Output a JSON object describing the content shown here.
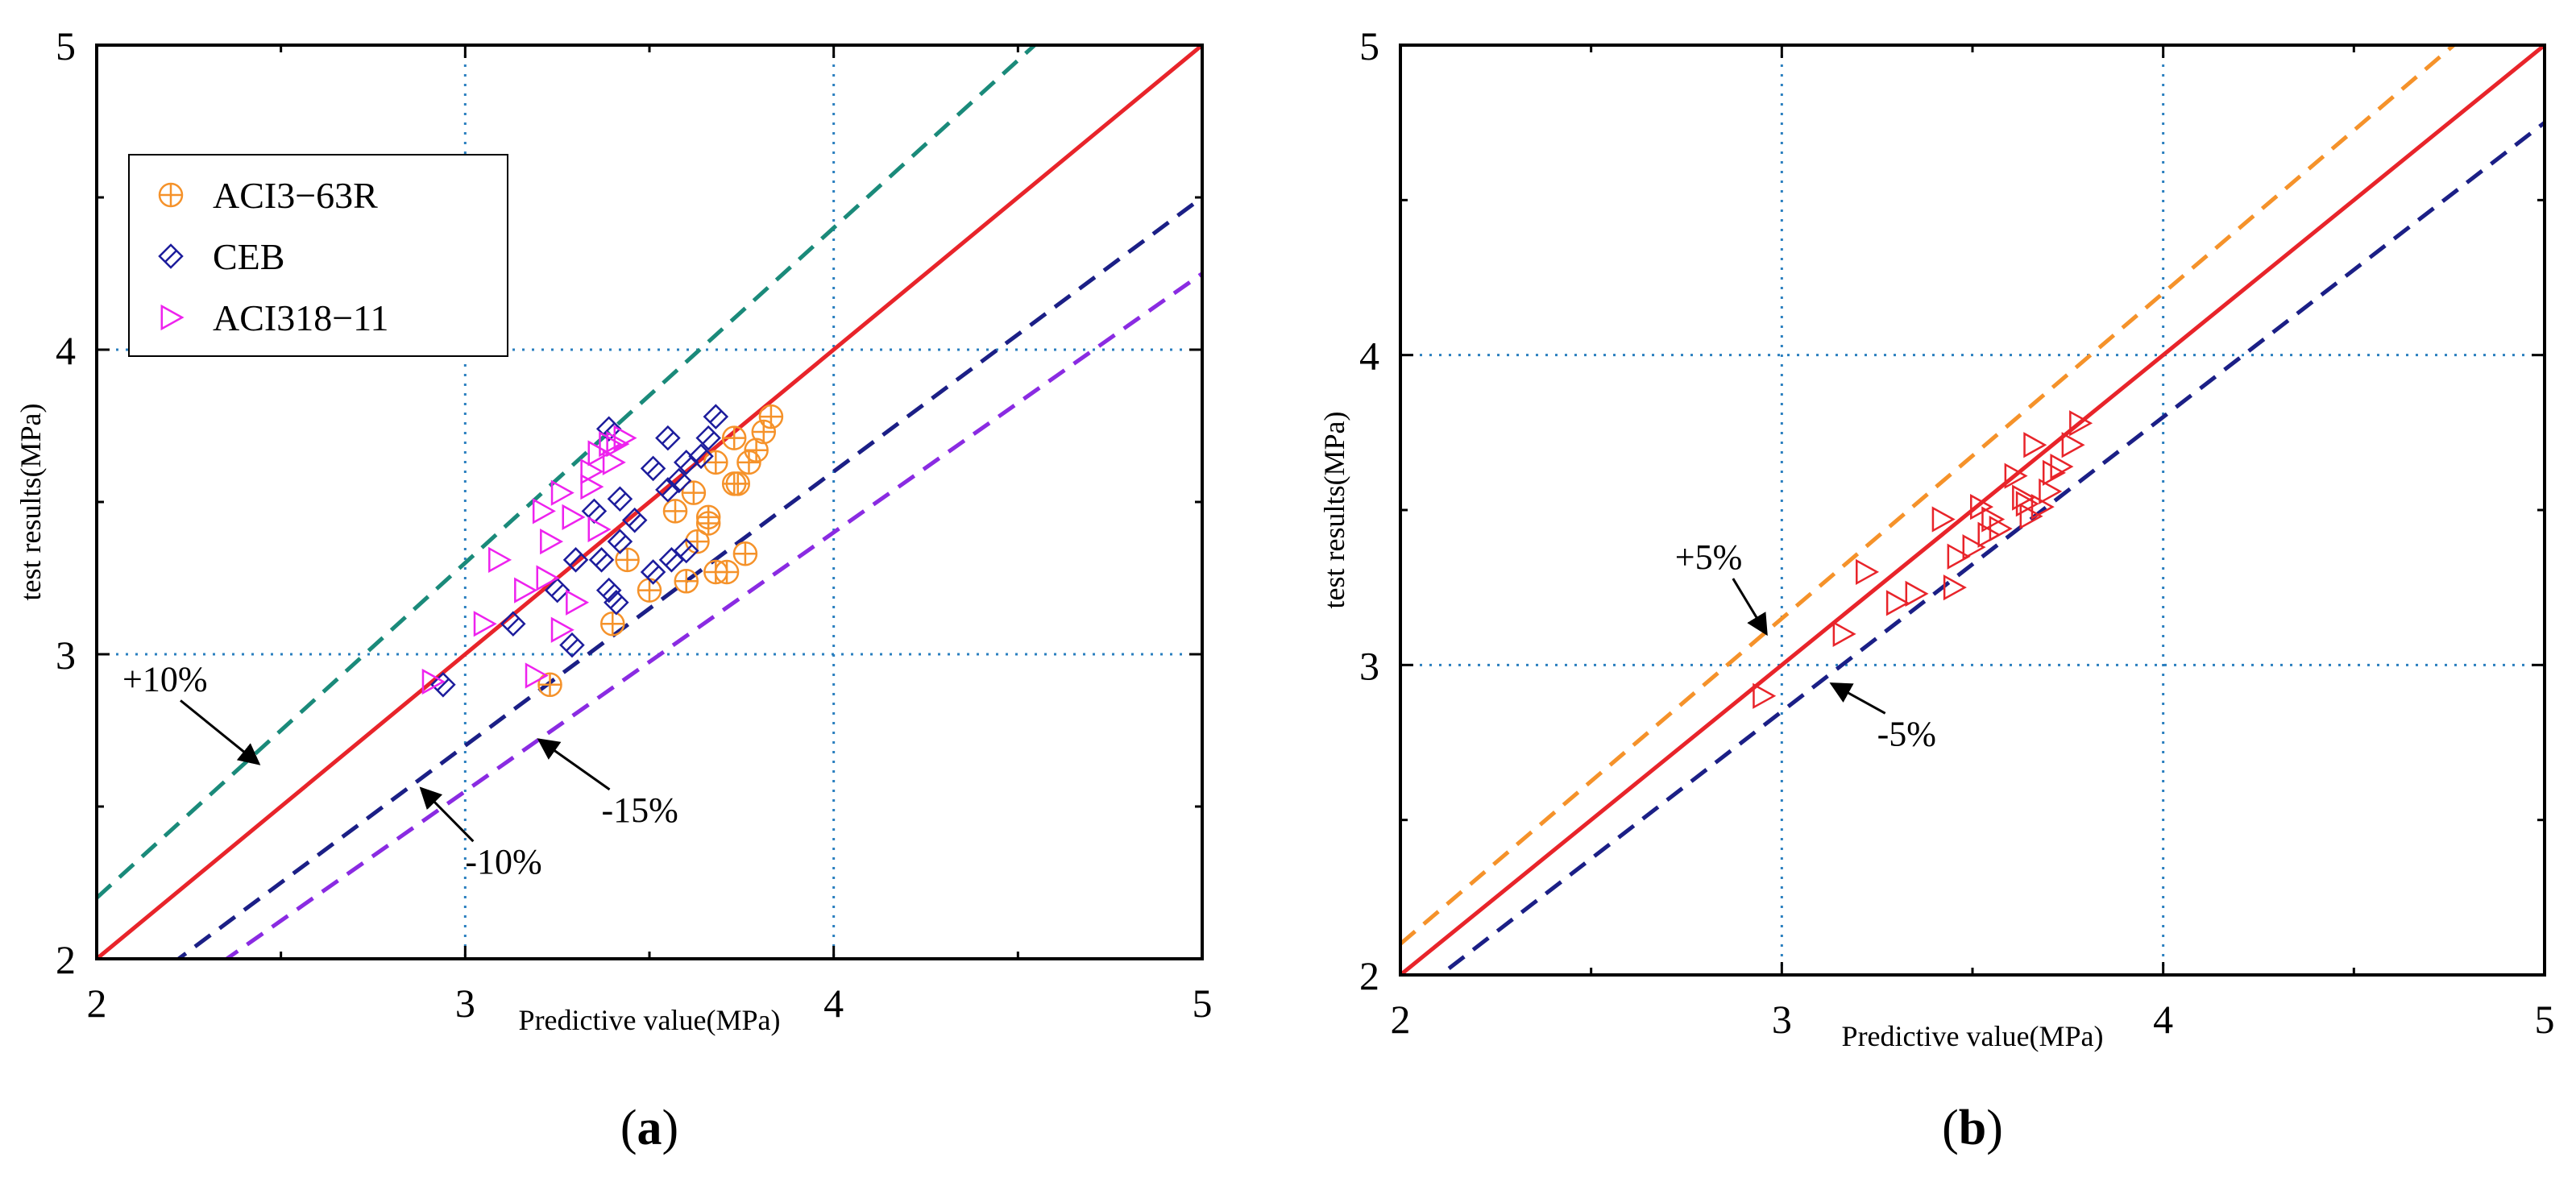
{
  "chart_data": [
    {
      "type": "scatter",
      "title": "",
      "caption_prefix": "(",
      "caption_letter": "a",
      "caption_suffix": ")",
      "xlabel": "Predictive value(MPa)",
      "ylabel": "test results(MPa)",
      "xlim": [
        2,
        5
      ],
      "ylim": [
        2,
        5
      ],
      "xticks": [
        "2",
        "3",
        "4",
        "5"
      ],
      "yticks": [
        "2",
        "3",
        "4",
        "5"
      ],
      "grid": true,
      "legend_position": "top-left",
      "series": [
        {
          "name": "ACI3−63R",
          "marker": "circle-plus",
          "color": "#f5922a",
          "points": [
            [
              3.23,
              2.9
            ],
            [
              3.4,
              3.1
            ],
            [
              3.44,
              3.31
            ],
            [
              3.5,
              3.21
            ],
            [
              3.6,
              3.24
            ],
            [
              3.63,
              3.37
            ],
            [
              3.57,
              3.47
            ],
            [
              3.62,
              3.53
            ],
            [
              3.66,
              3.45
            ],
            [
              3.68,
              3.27
            ],
            [
              3.71,
              3.27
            ],
            [
              3.76,
              3.33
            ],
            [
              3.68,
              3.63
            ],
            [
              3.73,
              3.56
            ],
            [
              3.74,
              3.56
            ],
            [
              3.73,
              3.71
            ],
            [
              3.77,
              3.63
            ],
            [
              3.79,
              3.67
            ],
            [
              3.81,
              3.73
            ],
            [
              3.83,
              3.78
            ],
            [
              3.66,
              3.43
            ]
          ]
        },
        {
          "name": "CEB",
          "marker": "diamond-slash",
          "color": "#1c1c9c",
          "points": [
            [
              2.94,
              2.9
            ],
            [
              3.13,
              3.1
            ],
            [
              3.29,
              3.03
            ],
            [
              3.39,
              3.21
            ],
            [
              3.41,
              3.17
            ],
            [
              3.25,
              3.21
            ],
            [
              3.3,
              3.31
            ],
            [
              3.37,
              3.31
            ],
            [
              3.42,
              3.37
            ],
            [
              3.46,
              3.44
            ],
            [
              3.42,
              3.51
            ],
            [
              3.51,
              3.27
            ],
            [
              3.56,
              3.31
            ],
            [
              3.6,
              3.34
            ],
            [
              3.55,
              3.54
            ],
            [
              3.51,
              3.61
            ],
            [
              3.58,
              3.57
            ],
            [
              3.6,
              3.63
            ],
            [
              3.64,
              3.65
            ],
            [
              3.66,
              3.71
            ],
            [
              3.68,
              3.78
            ],
            [
              3.55,
              3.71
            ],
            [
              3.35,
              3.47
            ],
            [
              3.39,
              3.74
            ]
          ]
        },
        {
          "name": "ACI318−11",
          "marker": "triangle-right",
          "color": "#ee22ee",
          "points": [
            [
              2.91,
              2.91
            ],
            [
              3.05,
              3.1
            ],
            [
              3.09,
              3.31
            ],
            [
              3.16,
              3.21
            ],
            [
              3.19,
              2.93
            ],
            [
              3.22,
              3.25
            ],
            [
              3.26,
              3.08
            ],
            [
              3.3,
              3.17
            ],
            [
              3.23,
              3.37
            ],
            [
              3.29,
              3.45
            ],
            [
              3.21,
              3.47
            ],
            [
              3.26,
              3.53
            ],
            [
              3.34,
              3.55
            ],
            [
              3.36,
              3.66
            ],
            [
              3.4,
              3.63
            ],
            [
              3.43,
              3.71
            ],
            [
              3.39,
              3.69
            ],
            [
              3.34,
              3.6
            ],
            [
              3.36,
              3.41
            ],
            [
              3.41,
              3.69
            ]
          ]
        }
      ],
      "reference_lines": [
        {
          "name": "y = x",
          "slope": 1.0,
          "color": "#e8242a",
          "dashed": false
        },
        {
          "name": "+10%",
          "slope": 1.1,
          "color": "#1a8a7a",
          "dashed": true
        },
        {
          "name": "-10%",
          "slope": 0.9,
          "color": "#1b1f86",
          "dashed": true
        },
        {
          "name": "-15%",
          "slope": 0.85,
          "color": "#8a2be2",
          "dashed": true
        }
      ],
      "annotations": [
        {
          "text": "+10%",
          "tx": 2.07,
          "ty": 2.88,
          "ax": 2.44,
          "ay": 2.64
        },
        {
          "text": "-10%",
          "tx": 3.0,
          "ty": 2.28,
          "ax": 2.88,
          "ay": 2.56
        },
        {
          "text": "-15%",
          "tx": 3.37,
          "ty": 2.45,
          "ax": 3.2,
          "ay": 2.72
        }
      ]
    },
    {
      "type": "scatter",
      "title": "",
      "caption_prefix": "(",
      "caption_letter": "b",
      "caption_suffix": ")",
      "xlabel": "Predictive value(MPa)",
      "ylabel": "test results(MPa)",
      "xlim": [
        2,
        5
      ],
      "ylim": [
        2,
        5
      ],
      "xticks": [
        "2",
        "3",
        "4",
        "5"
      ],
      "yticks": [
        "2",
        "3",
        "4",
        "5"
      ],
      "grid": true,
      "series": [
        {
          "name": "",
          "marker": "triangle-right",
          "color": "#e8242a",
          "points": [
            [
              2.95,
              2.9
            ],
            [
              3.16,
              3.1
            ],
            [
              3.22,
              3.3
            ],
            [
              3.3,
              3.2
            ],
            [
              3.35,
              3.23
            ],
            [
              3.42,
              3.47
            ],
            [
              3.45,
              3.25
            ],
            [
              3.46,
              3.35
            ],
            [
              3.5,
              3.38
            ],
            [
              3.52,
              3.51
            ],
            [
              3.55,
              3.47
            ],
            [
              3.57,
              3.44
            ],
            [
              3.61,
              3.61
            ],
            [
              3.63,
              3.54
            ],
            [
              3.64,
              3.52
            ],
            [
              3.66,
              3.71
            ],
            [
              3.68,
              3.51
            ],
            [
              3.7,
              3.56
            ],
            [
              3.71,
              3.62
            ],
            [
              3.73,
              3.64
            ],
            [
              3.76,
              3.71
            ],
            [
              3.78,
              3.78
            ],
            [
              3.65,
              3.48
            ],
            [
              3.54,
              3.42
            ]
          ]
        }
      ],
      "reference_lines": [
        {
          "name": "y = x",
          "slope": 1.0,
          "color": "#e8242a",
          "dashed": false
        },
        {
          "name": "+5%",
          "slope": 1.05,
          "color": "#f5922a",
          "dashed": true
        },
        {
          "name": "-5%",
          "slope": 0.95,
          "color": "#1b1f86",
          "dashed": true
        }
      ],
      "annotations": [
        {
          "text": "+5%",
          "tx": 2.72,
          "ty": 3.31,
          "ax": 2.96,
          "ay": 3.1
        },
        {
          "text": "-5%",
          "tx": 3.25,
          "ty": 2.74,
          "ax": 3.13,
          "ay": 2.94
        }
      ]
    }
  ]
}
